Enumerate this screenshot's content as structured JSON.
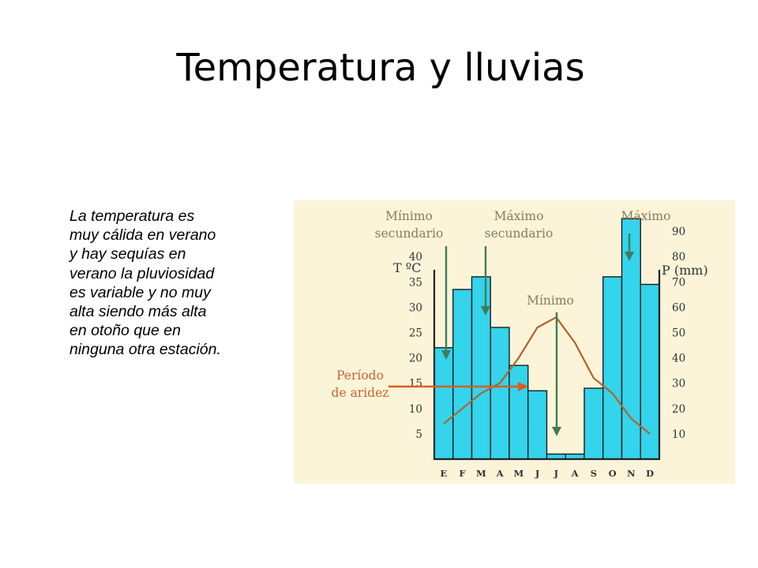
{
  "slide": {
    "title": "Temperatura y lluvias",
    "body": "La temperatura es muy cálida en verano y hay sequías en verano la pluviosidad es variable y no muy alta siendo más alta en otoño que en ninguna otra estación."
  },
  "chart_data": {
    "type": "bar",
    "title": "",
    "categories": [
      "E",
      "F",
      "M",
      "A",
      "M",
      "J",
      "J",
      "A",
      "S",
      "O",
      "N",
      "D"
    ],
    "series": [
      {
        "name": "",
        "kind": "bar",
        "axis": "right",
        "values": [
          44,
          67,
          72,
          52,
          37,
          27,
          2,
          2,
          28,
          72,
          95,
          69
        ]
      },
      {
        "name": "",
        "kind": "line",
        "axis": "left",
        "values": [
          7,
          10,
          13,
          15,
          20,
          26,
          28,
          23,
          16,
          13,
          8,
          5
        ]
      }
    ],
    "y_left": {
      "label": "T ºC",
      "ticks": [
        5,
        10,
        15,
        20,
        25,
        30,
        35,
        40
      ],
      "range": [
        0,
        50
      ]
    },
    "y_right": {
      "label": "P (mm)",
      "ticks": [
        10,
        20,
        30,
        40,
        50,
        60,
        70,
        80,
        90
      ],
      "range": [
        0,
        100
      ]
    },
    "annotations": [
      {
        "id": "minimo-secundario",
        "lines": [
          "Mínimo",
          "secundario"
        ]
      },
      {
        "id": "maximo-secundario",
        "lines": [
          "Máximo",
          "secundario"
        ]
      },
      {
        "id": "maximo",
        "lines": [
          "Máximo"
        ]
      },
      {
        "id": "minimo",
        "lines": [
          "Mínimo"
        ]
      },
      {
        "id": "periodo-aridez",
        "lines": [
          "Período",
          "de aridez"
        ]
      }
    ],
    "colors": {
      "background": "#fbf4d9",
      "bar_fill": "#33d4ec",
      "bar_stroke": "#1c1c1c",
      "temperature_line": "#b2622e",
      "annotation_text": "#8c7a5a",
      "annotation_arrow": "#3f7d56",
      "aridez_text": "#c8642b",
      "aridez_arrow": "#e05a1e"
    },
    "grid": false,
    "legend": "none"
  }
}
